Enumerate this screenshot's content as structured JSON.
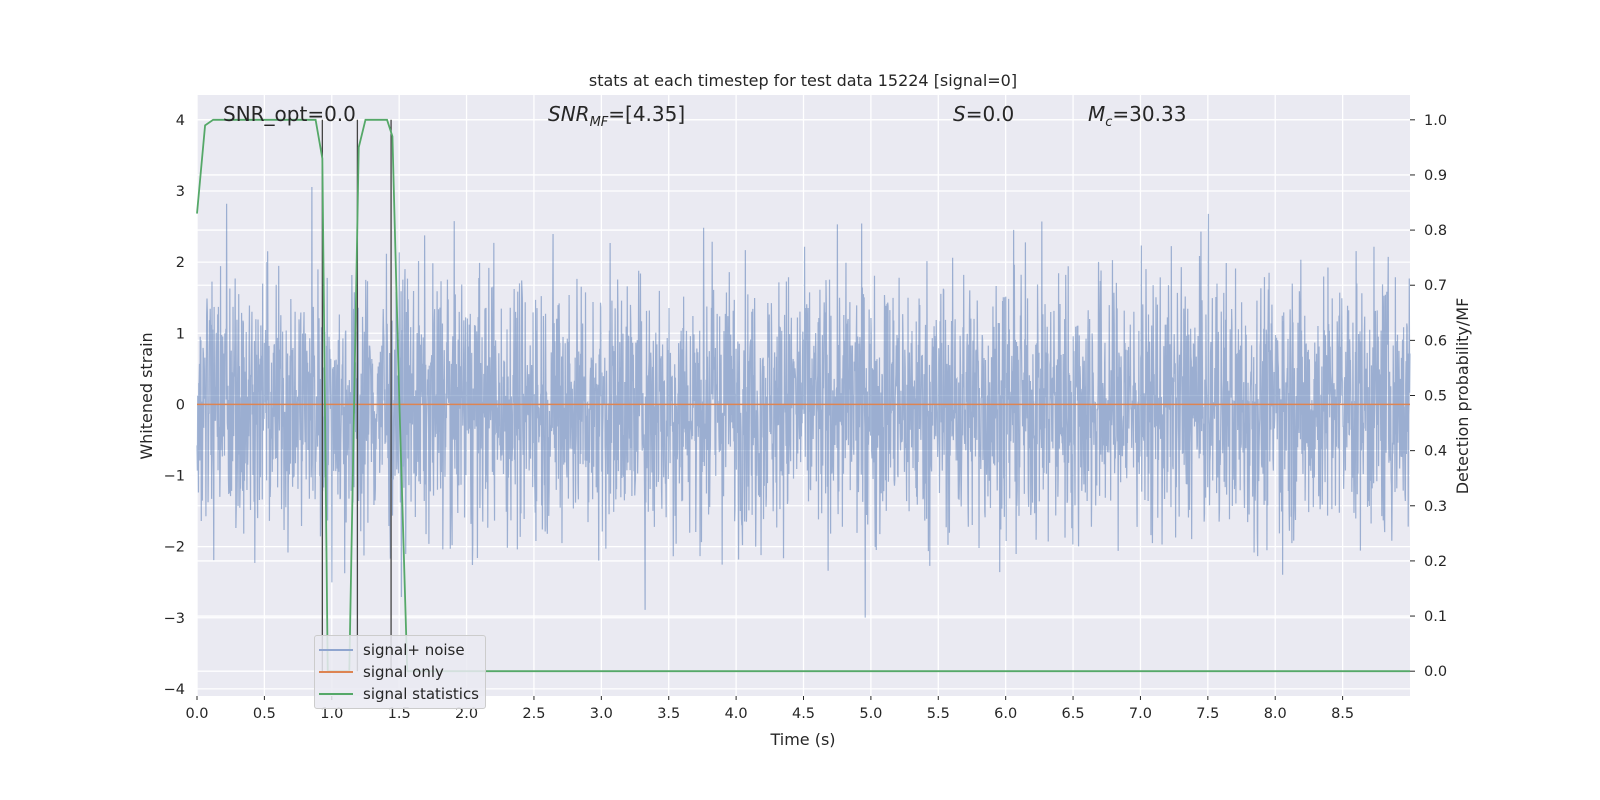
{
  "chart_data": {
    "type": "line",
    "title": "stats at each timestep for test data 15224 [signal=0]",
    "xlabel": "Time (s)",
    "ylabel": "Whitened strain",
    "y2label": "Detection probability/MF",
    "xlim": [
      0.0,
      9.0
    ],
    "ylim": [
      -4.1,
      4.35
    ],
    "y2lim": [
      -0.045,
      1.045
    ],
    "xticks": [
      "0.0",
      "0.5",
      "1.0",
      "1.5",
      "2.0",
      "2.5",
      "3.0",
      "3.5",
      "4.0",
      "4.5",
      "5.0",
      "5.5",
      "6.0",
      "6.5",
      "7.0",
      "7.5",
      "8.0",
      "8.5"
    ],
    "yticks": [
      "−4",
      "−3",
      "−2",
      "−1",
      "0",
      "1",
      "2",
      "3",
      "4"
    ],
    "y2ticks": [
      "0.0",
      "0.1",
      "0.2",
      "0.3",
      "0.4",
      "0.5",
      "0.6",
      "0.7",
      "0.8",
      "0.9",
      "1.0"
    ],
    "grid": true,
    "annotations": [
      {
        "text": "SNR_opt=0.0",
        "x": 0.2
      },
      {
        "text": "SNR_MF=[4.35]",
        "x": 2.6
      },
      {
        "text": "S=0.0",
        "x": 5.6
      },
      {
        "text": "M_c=30.33",
        "x": 6.6
      }
    ],
    "series": [
      {
        "name": "signal+ noise",
        "color": "#4c72b0",
        "axis": "left",
        "description_values": {
          "mean": 0.0,
          "std": 1.0,
          "peak_max": 4.0,
          "peak_min": -3.65
        }
      },
      {
        "name": "signal only",
        "color": "#dd8452",
        "axis": "left",
        "x": [
          0.0,
          9.0
        ],
        "y": [
          0.0,
          0.0
        ]
      },
      {
        "name": "signal statistics",
        "color": "#55a868",
        "axis": "right",
        "x": [
          0.0,
          0.06,
          0.12,
          0.88,
          0.93,
          0.97,
          1.03,
          1.08,
          1.13,
          1.2,
          1.25,
          1.3,
          1.41,
          1.45,
          1.5,
          1.56,
          1.62,
          9.0
        ],
        "y": [
          0.83,
          0.99,
          1.0,
          1.0,
          0.93,
          0.0,
          0.0,
          0.0,
          0.0,
          0.95,
          1.0,
          1.0,
          1.0,
          0.97,
          0.5,
          0.0,
          0.0,
          0.0
        ]
      }
    ],
    "vlines": [
      0.93,
      1.19,
      1.44
    ],
    "legend": {
      "loc": "lower-left",
      "entries": [
        {
          "label": "signal+ noise",
          "color": "#4c72b0"
        },
        {
          "label": "signal only",
          "color": "#dd8452"
        },
        {
          "label": "signal statistics",
          "color": "#55a868"
        }
      ]
    }
  }
}
